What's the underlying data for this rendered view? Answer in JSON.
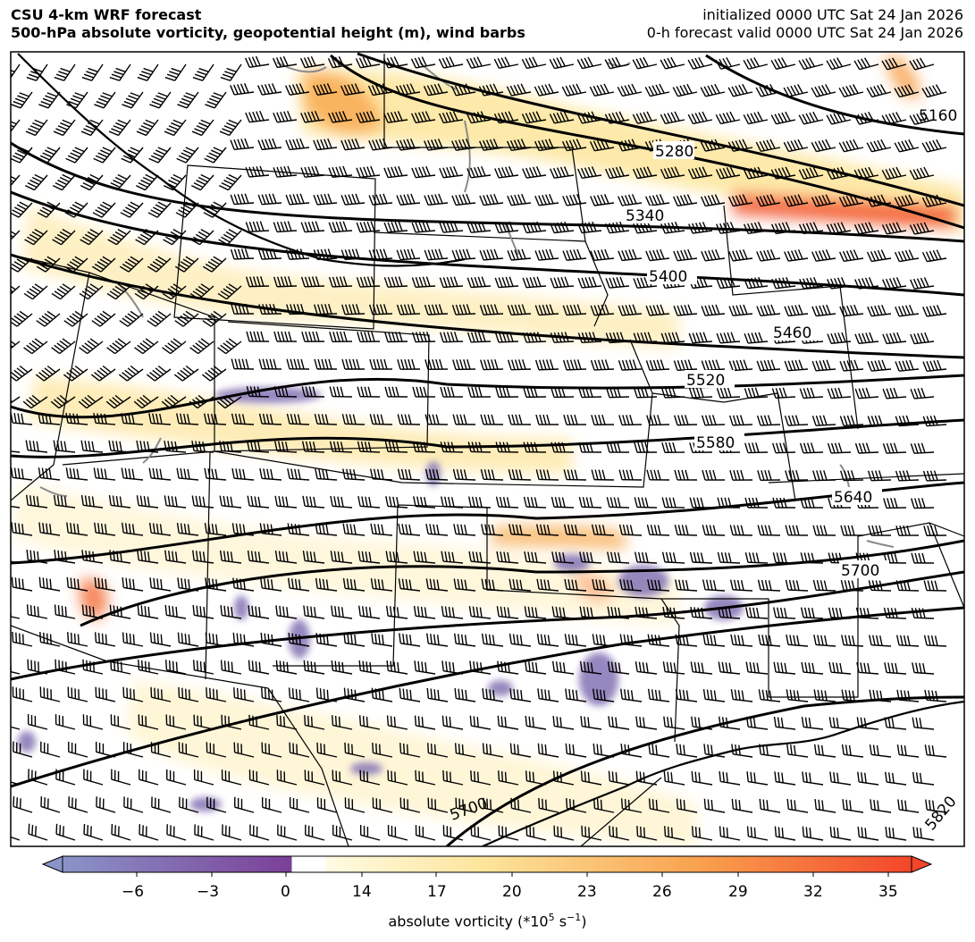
{
  "header": {
    "left_line1": "CSU 4-km WRF forecast",
    "left_line2": "500-hPa absolute vorticity, geopotential height (m), wind barbs",
    "right_line1": "initialized 0000 UTC Sat 24 Jan 2026",
    "right_line2": "0-h forecast valid 0000 UTC Sat 24 Jan 2026"
  },
  "colorbar": {
    "ticks": [
      "−6",
      "−3",
      "0",
      "14",
      "17",
      "20",
      "23",
      "26",
      "29",
      "32",
      "35"
    ],
    "title": "absolute vorticity (*10",
    "title_sup": "5",
    "title_unit": " s",
    "title_unit_sup": "−1",
    "title_end": ")"
  },
  "contours": {
    "labels": [
      "5280",
      "5340",
      "5400",
      "5460",
      "5520",
      "5580",
      "5640",
      "5700",
      "5700",
      "5820",
      "5160"
    ]
  },
  "colors": {
    "contour": "#000000",
    "state_lines": "#000000",
    "lakes_rivers": "#8a8a8a",
    "cyclonic_low": "#fde9a6",
    "cyclonic_high": "#f34c2c",
    "anticyclonic": "#7b3f98"
  }
}
